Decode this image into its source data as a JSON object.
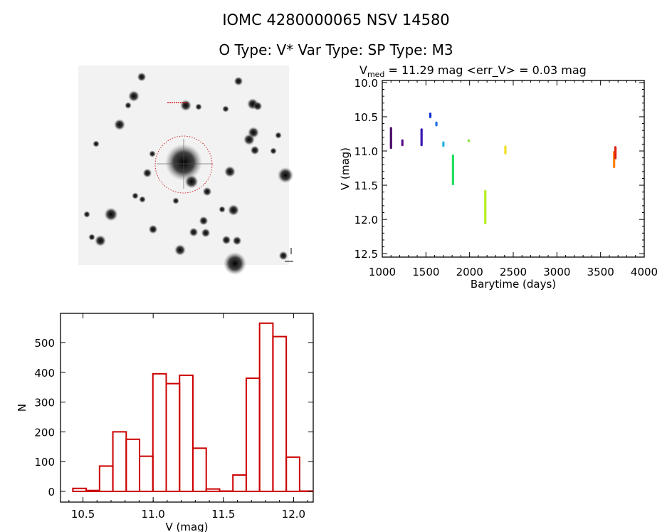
{
  "header": {
    "line1": "IOMC 4280000065    NSV 14580",
    "line2": "O Type: V*  Var Type:   SP Type: M3"
  },
  "chart_data": [
    {
      "type": "scatter",
      "title_prefix": "V",
      "title_sub": "med",
      "title_rest": " = 11.29 mag <err_V> = 0.03 mag",
      "xlabel": "Barytime (days)",
      "ylabel": "V (mag)",
      "xlim": [
        1000,
        4000
      ],
      "ylim": [
        9.97,
        12.55
      ],
      "y_inverted": true,
      "xticks": [
        1000,
        1500,
        2000,
        2500,
        3000,
        3500,
        4000
      ],
      "xtick_labels": [
        "1000",
        "1500",
        "2000",
        "2500",
        "3000",
        "3500",
        "4000"
      ],
      "yticks": [
        10.0,
        10.5,
        11.0,
        11.5,
        12.0,
        12.5
      ],
      "ytick_labels": [
        "10.0",
        "10.5",
        "11.0",
        "11.5",
        "12.0",
        "12.5"
      ],
      "series": [
        {
          "x": 1100,
          "ymin": 10.65,
          "ymax": 10.97,
          "color": "#4a0a6a"
        },
        {
          "x": 1230,
          "ymin": 10.83,
          "ymax": 10.93,
          "color": "#5a0c8c"
        },
        {
          "x": 1450,
          "ymin": 10.67,
          "ymax": 10.93,
          "color": "#3a14b4"
        },
        {
          "x": 1550,
          "ymin": 10.44,
          "ymax": 10.52,
          "color": "#1030d0"
        },
        {
          "x": 1620,
          "ymin": 10.57,
          "ymax": 10.64,
          "color": "#2070e0"
        },
        {
          "x": 1700,
          "ymin": 10.86,
          "ymax": 10.94,
          "color": "#20b4e0"
        },
        {
          "x": 1810,
          "ymin": 11.05,
          "ymax": 11.5,
          "color": "#20e060"
        },
        {
          "x": 1990,
          "ymin": 10.83,
          "ymax": 10.87,
          "color": "#88e040"
        },
        {
          "x": 2180,
          "ymin": 11.57,
          "ymax": 12.07,
          "color": "#b4f020"
        },
        {
          "x": 2410,
          "ymin": 10.92,
          "ymax": 11.05,
          "color": "#f0e020"
        },
        {
          "x": 3655,
          "ymin": 11.0,
          "ymax": 11.25,
          "color": "#ff8010"
        },
        {
          "x": 3670,
          "ymin": 10.93,
          "ymax": 11.12,
          "color": "#e02010"
        }
      ]
    },
    {
      "type": "bar",
      "xlabel": "V (mag)",
      "ylabel": "N",
      "xlim": [
        10.34,
        12.14
      ],
      "ylim": [
        -36,
        598
      ],
      "bin_start": 10.428,
      "bin_width": 0.095,
      "values": [
        10,
        3,
        85,
        200,
        175,
        118,
        395,
        362,
        390,
        145,
        8,
        1,
        55,
        380,
        565,
        520,
        115,
        1
      ],
      "bar_color": "#cc0000",
      "xticks": [
        10.5,
        11.0,
        11.5,
        12.0
      ],
      "xtick_labels": [
        "10.5",
        "11.0",
        "11.5",
        "12.0"
      ],
      "yticks": [
        0,
        100,
        200,
        300,
        400,
        500
      ],
      "ytick_labels": [
        "0",
        "100",
        "200",
        "300",
        "400",
        "500"
      ]
    }
  ]
}
